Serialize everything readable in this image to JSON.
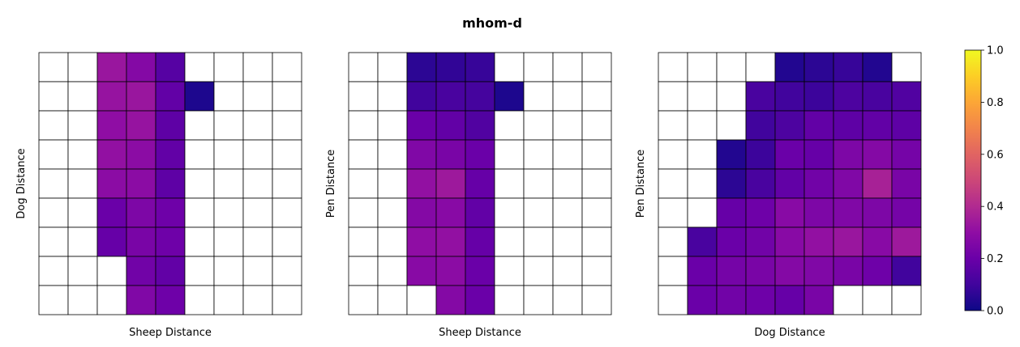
{
  "title": "mhom-d",
  "chart_data": {
    "type": "heatmap",
    "colormap": "plasma",
    "color_range": [
      0.0,
      1.0
    ],
    "colorbar_ticks": [
      "0.0",
      "0.2",
      "0.4",
      "0.6",
      "0.8",
      "1.0"
    ],
    "grid": true,
    "panels": [
      {
        "xlabel": "Sheep Distance",
        "ylabel": "Dog Distance",
        "cells": [
          [
            null,
            null,
            0.33,
            0.27,
            0.15,
            null,
            null,
            null,
            null
          ],
          [
            null,
            null,
            0.32,
            0.33,
            0.18,
            0.03,
            null,
            null,
            null
          ],
          [
            null,
            null,
            0.3,
            0.32,
            0.17,
            null,
            null,
            null,
            null
          ],
          [
            null,
            null,
            0.31,
            0.29,
            0.18,
            null,
            null,
            null,
            null
          ],
          [
            null,
            null,
            0.29,
            0.29,
            0.17,
            null,
            null,
            null,
            null
          ],
          [
            null,
            null,
            0.2,
            0.25,
            0.21,
            null,
            null,
            null,
            null
          ],
          [
            null,
            null,
            0.19,
            0.24,
            0.21,
            null,
            null,
            null,
            null
          ],
          [
            null,
            null,
            null,
            0.22,
            0.18,
            null,
            null,
            null,
            null
          ],
          [
            null,
            null,
            null,
            0.26,
            0.21,
            null,
            null,
            null,
            null
          ]
        ]
      },
      {
        "xlabel": "Sheep Distance",
        "ylabel": "Pen Distance",
        "cells": [
          [
            null,
            null,
            0.06,
            0.07,
            0.08,
            null,
            null,
            null,
            null
          ],
          [
            null,
            null,
            0.1,
            0.12,
            0.11,
            0.03,
            null,
            null,
            null
          ],
          [
            null,
            null,
            0.2,
            0.18,
            0.14,
            null,
            null,
            null,
            null
          ],
          [
            null,
            null,
            0.26,
            0.24,
            0.2,
            null,
            null,
            null,
            null
          ],
          [
            null,
            null,
            0.31,
            0.34,
            0.19,
            null,
            null,
            null,
            null
          ],
          [
            null,
            null,
            0.27,
            0.28,
            0.18,
            null,
            null,
            null,
            null
          ],
          [
            null,
            null,
            0.3,
            0.31,
            0.19,
            null,
            null,
            null,
            null
          ],
          [
            null,
            null,
            0.28,
            0.29,
            0.2,
            null,
            null,
            null,
            null
          ],
          [
            null,
            null,
            null,
            0.27,
            0.2,
            null,
            null,
            null,
            null
          ]
        ]
      },
      {
        "xlabel": "Dog Distance",
        "ylabel": "Pen Distance",
        "cells": [
          [
            null,
            null,
            null,
            null,
            0.04,
            0.06,
            0.08,
            0.04,
            null
          ],
          [
            null,
            null,
            null,
            0.12,
            0.1,
            0.09,
            0.13,
            0.12,
            0.14
          ],
          [
            null,
            null,
            null,
            0.1,
            0.13,
            0.18,
            0.17,
            0.18,
            0.17
          ],
          [
            null,
            null,
            0.04,
            0.09,
            0.2,
            0.19,
            0.25,
            0.27,
            0.23
          ],
          [
            null,
            null,
            0.06,
            0.12,
            0.18,
            0.22,
            0.26,
            0.37,
            0.24
          ],
          [
            null,
            null,
            0.19,
            0.21,
            0.28,
            0.25,
            0.26,
            0.25,
            0.23
          ],
          [
            null,
            0.12,
            0.2,
            0.22,
            0.28,
            0.31,
            0.33,
            0.28,
            0.34
          ],
          [
            null,
            0.2,
            0.23,
            0.24,
            0.27,
            0.26,
            0.24,
            0.21,
            0.1
          ],
          [
            null,
            0.2,
            0.22,
            0.21,
            0.19,
            0.24,
            null,
            null,
            null
          ]
        ]
      }
    ]
  }
}
